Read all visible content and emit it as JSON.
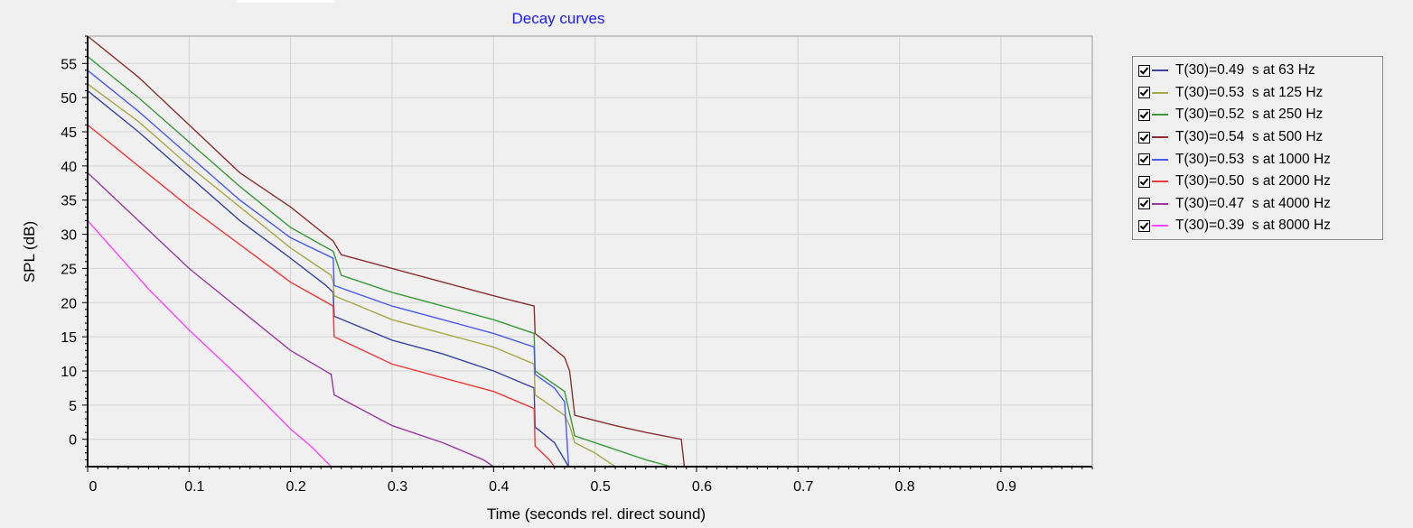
{
  "chart_data": {
    "type": "line",
    "title": "Decay curves",
    "xlabel": "Time (seconds rel. direct sound)",
    "ylabel": "SPL (dB)",
    "xlim": [
      0,
      0.99
    ],
    "ylim": [
      -4,
      59
    ],
    "x_ticks": [
      0,
      0.1,
      0.2,
      0.3,
      0.4,
      0.5,
      0.6,
      0.7,
      0.8,
      0.9
    ],
    "x_tick_labels": [
      "0",
      "0.1",
      "0.2",
      "0.3",
      "0.4",
      "0.5",
      "0.6",
      "0.7",
      "0.8",
      "0.9"
    ],
    "y_ticks": [
      0,
      5,
      10,
      15,
      20,
      25,
      30,
      35,
      40,
      45,
      50,
      55
    ],
    "y_tick_labels": [
      "0",
      "5",
      "10",
      "15",
      "20",
      "25",
      "30",
      "35",
      "40",
      "45",
      "50",
      "55"
    ],
    "grid": true,
    "legend_position": "right",
    "series": [
      {
        "name": "T(30)=0.49  s at 63 Hz",
        "color": "#3a44a0",
        "points": [
          [
            0,
            51
          ],
          [
            0.05,
            45
          ],
          [
            0.1,
            38.5
          ],
          [
            0.15,
            32
          ],
          [
            0.2,
            26.5
          ],
          [
            0.235,
            22.5
          ],
          [
            0.242,
            21.5
          ],
          [
            0.243,
            18
          ],
          [
            0.3,
            14.5
          ],
          [
            0.35,
            12.5
          ],
          [
            0.4,
            10
          ],
          [
            0.44,
            7.5
          ],
          [
            0.441,
            1.8
          ],
          [
            0.46,
            -0.5
          ],
          [
            0.474,
            -4
          ]
        ]
      },
      {
        "name": "T(30)=0.53  s at 125 Hz",
        "color": "#a8a845",
        "points": [
          [
            0,
            52
          ],
          [
            0.05,
            46.5
          ],
          [
            0.1,
            40
          ],
          [
            0.15,
            34
          ],
          [
            0.2,
            28
          ],
          [
            0.24,
            24
          ],
          [
            0.242,
            23
          ],
          [
            0.243,
            21
          ],
          [
            0.3,
            17.5
          ],
          [
            0.35,
            15.5
          ],
          [
            0.4,
            13.5
          ],
          [
            0.44,
            11
          ],
          [
            0.441,
            6.5
          ],
          [
            0.47,
            3.5
          ],
          [
            0.475,
            2
          ],
          [
            0.48,
            -0.5
          ],
          [
            0.5,
            -2
          ],
          [
            0.52,
            -4
          ]
        ]
      },
      {
        "name": "T(30)=0.52  s at 250 Hz",
        "color": "#3a9a3a",
        "points": [
          [
            0,
            56
          ],
          [
            0.05,
            50
          ],
          [
            0.1,
            43.5
          ],
          [
            0.15,
            37
          ],
          [
            0.2,
            31
          ],
          [
            0.242,
            27.5
          ],
          [
            0.25,
            24
          ],
          [
            0.3,
            21.5
          ],
          [
            0.35,
            19.5
          ],
          [
            0.4,
            17.5
          ],
          [
            0.44,
            15.5
          ],
          [
            0.441,
            10
          ],
          [
            0.47,
            7
          ],
          [
            0.48,
            0.5
          ],
          [
            0.52,
            -1.5
          ],
          [
            0.55,
            -3
          ],
          [
            0.575,
            -4
          ]
        ]
      },
      {
        "name": "T(30)=0.54  s at 500 Hz",
        "color": "#8b3030",
        "points": [
          [
            0,
            59
          ],
          [
            0.05,
            53
          ],
          [
            0.1,
            46
          ],
          [
            0.15,
            39
          ],
          [
            0.2,
            34
          ],
          [
            0.242,
            29
          ],
          [
            0.25,
            27
          ],
          [
            0.3,
            25
          ],
          [
            0.35,
            23
          ],
          [
            0.4,
            21
          ],
          [
            0.44,
            19.5
          ],
          [
            0.441,
            15.5
          ],
          [
            0.47,
            12
          ],
          [
            0.475,
            10
          ],
          [
            0.48,
            3.5
          ],
          [
            0.52,
            2
          ],
          [
            0.55,
            1
          ],
          [
            0.585,
            0
          ],
          [
            0.588,
            -4
          ]
        ]
      },
      {
        "name": "T(30)=0.53  s at 1000 Hz",
        "color": "#4a5af0",
        "points": [
          [
            0,
            54
          ],
          [
            0.05,
            48
          ],
          [
            0.1,
            41.5
          ],
          [
            0.15,
            35
          ],
          [
            0.2,
            29.5
          ],
          [
            0.242,
            26.5
          ],
          [
            0.243,
            22.5
          ],
          [
            0.3,
            19.5
          ],
          [
            0.35,
            17.5
          ],
          [
            0.4,
            15.5
          ],
          [
            0.44,
            13.5
          ],
          [
            0.441,
            9.5
          ],
          [
            0.46,
            7.5
          ],
          [
            0.47,
            5.5
          ],
          [
            0.474,
            -4
          ]
        ]
      },
      {
        "name": "T(30)=0.50  s at 2000 Hz",
        "color": "#f03a3a",
        "points": [
          [
            0,
            46
          ],
          [
            0.05,
            40
          ],
          [
            0.1,
            34
          ],
          [
            0.15,
            28.5
          ],
          [
            0.2,
            23
          ],
          [
            0.242,
            19.5
          ],
          [
            0.243,
            15
          ],
          [
            0.3,
            11
          ],
          [
            0.35,
            9
          ],
          [
            0.4,
            7
          ],
          [
            0.44,
            4.5
          ],
          [
            0.441,
            -1
          ],
          [
            0.455,
            -3
          ],
          [
            0.46,
            -4
          ]
        ]
      },
      {
        "name": "T(30)=0.47  s at 4000 Hz",
        "color": "#9a3aa0",
        "points": [
          [
            0,
            39
          ],
          [
            0.05,
            32
          ],
          [
            0.1,
            25
          ],
          [
            0.15,
            19
          ],
          [
            0.2,
            13
          ],
          [
            0.24,
            9.5
          ],
          [
            0.243,
            6.5
          ],
          [
            0.3,
            2
          ],
          [
            0.35,
            -0.5
          ],
          [
            0.39,
            -3
          ],
          [
            0.4,
            -4
          ]
        ]
      },
      {
        "name": "T(30)=0.39  s at 8000 Hz",
        "color": "#ff44ff",
        "points": [
          [
            0,
            32
          ],
          [
            0.03,
            27
          ],
          [
            0.06,
            22
          ],
          [
            0.1,
            16
          ],
          [
            0.15,
            9
          ],
          [
            0.2,
            1.5
          ],
          [
            0.22,
            -1
          ],
          [
            0.24,
            -4
          ]
        ]
      }
    ]
  }
}
